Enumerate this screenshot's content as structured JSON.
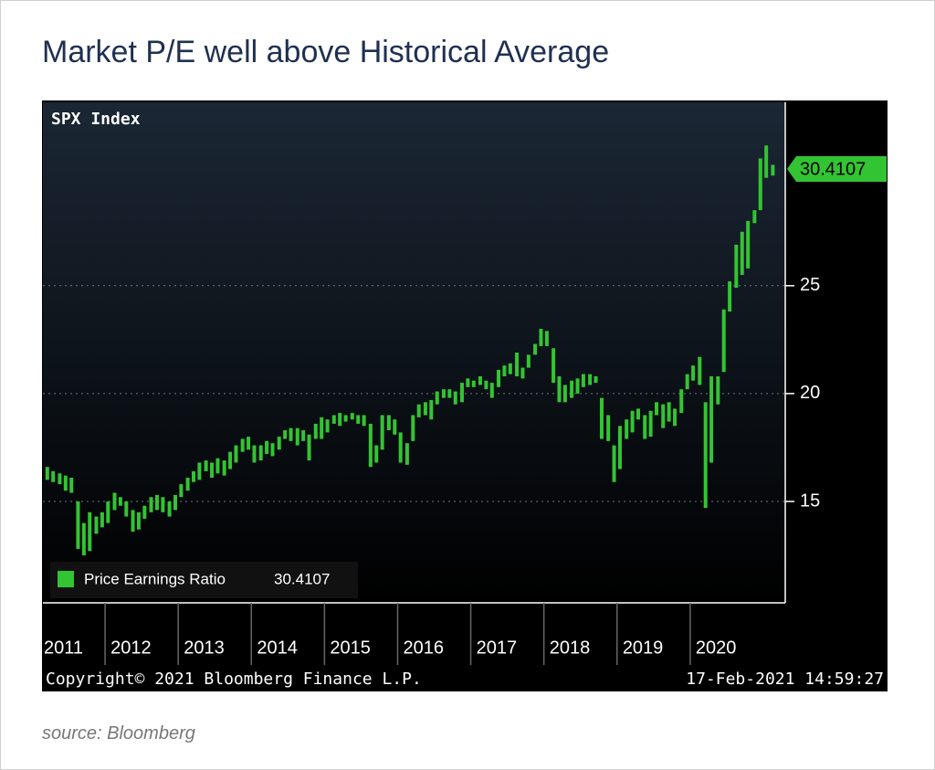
{
  "title": "Market P/E well above Historical Average",
  "source": "source: Bloomberg",
  "chart_data": {
    "type": "range-bar",
    "panel_title": "SPX Index",
    "copyright": "Copyright© 2021 Bloomberg Finance L.P.",
    "timestamp": "17-Feb-2021 14:59:27",
    "last_value": 30.4107,
    "x": [
      2011.21,
      2011.29,
      2011.38,
      2011.46,
      2011.54,
      2011.63,
      2011.71,
      2011.79,
      2011.88,
      2011.96,
      2012.04,
      2012.13,
      2012.21,
      2012.29,
      2012.38,
      2012.46,
      2012.54,
      2012.63,
      2012.71,
      2012.79,
      2012.88,
      2012.96,
      2013.04,
      2013.13,
      2013.21,
      2013.29,
      2013.38,
      2013.46,
      2013.54,
      2013.63,
      2013.71,
      2013.79,
      2013.88,
      2013.96,
      2014.04,
      2014.13,
      2014.21,
      2014.29,
      2014.38,
      2014.46,
      2014.54,
      2014.63,
      2014.71,
      2014.79,
      2014.88,
      2014.96,
      2015.04,
      2015.13,
      2015.21,
      2015.29,
      2015.38,
      2015.46,
      2015.54,
      2015.63,
      2015.71,
      2015.79,
      2015.88,
      2015.96,
      2016.04,
      2016.13,
      2016.21,
      2016.29,
      2016.38,
      2016.46,
      2016.54,
      2016.63,
      2016.71,
      2016.79,
      2016.88,
      2016.96,
      2017.04,
      2017.13,
      2017.21,
      2017.29,
      2017.38,
      2017.46,
      2017.54,
      2017.63,
      2017.71,
      2017.79,
      2017.88,
      2017.96,
      2018.04,
      2018.13,
      2018.21,
      2018.29,
      2018.38,
      2018.46,
      2018.54,
      2018.63,
      2018.71,
      2018.79,
      2018.88,
      2018.96,
      2019.04,
      2019.13,
      2019.21,
      2019.29,
      2019.38,
      2019.46,
      2019.54,
      2019.63,
      2019.71,
      2019.79,
      2019.88,
      2019.96,
      2020.04,
      2020.13,
      2020.21,
      2020.29,
      2020.38,
      2020.46,
      2020.54,
      2020.63,
      2020.71,
      2020.79,
      2020.88,
      2020.96,
      2021.04,
      2021.13
    ],
    "series": [
      {
        "name": "Price Earnings Ratio",
        "color": "#33c433",
        "low": [
          16.0,
          15.9,
          15.8,
          15.5,
          15.4,
          12.8,
          12.5,
          12.7,
          13.5,
          13.8,
          14.0,
          14.6,
          14.8,
          14.3,
          13.6,
          13.7,
          14.2,
          14.5,
          14.6,
          14.5,
          14.3,
          14.6,
          15.2,
          15.5,
          15.9,
          16.0,
          16.4,
          16.1,
          16.3,
          16.2,
          16.5,
          16.8,
          17.3,
          17.4,
          16.8,
          16.9,
          17.2,
          17.1,
          17.4,
          17.9,
          17.8,
          17.6,
          17.8,
          16.9,
          17.9,
          17.9,
          18.2,
          18.6,
          18.5,
          18.7,
          18.8,
          18.6,
          18.5,
          16.6,
          16.8,
          17.4,
          18.3,
          18.1,
          16.8,
          16.7,
          17.8,
          18.9,
          19.0,
          18.8,
          19.5,
          19.8,
          19.8,
          19.5,
          19.6,
          20.3,
          20.3,
          20.4,
          20.2,
          19.8,
          20.3,
          20.8,
          20.9,
          20.8,
          20.7,
          21.2,
          21.8,
          22.2,
          22.2,
          20.5,
          19.6,
          19.6,
          19.8,
          20.0,
          20.3,
          20.4,
          20.5,
          17.9,
          17.8,
          15.9,
          16.5,
          17.9,
          18.2,
          18.8,
          17.9,
          18.0,
          19.0,
          18.4,
          18.7,
          18.5,
          19.1,
          20.2,
          20.6,
          20.4,
          14.7,
          16.8,
          19.5,
          21.0,
          23.8,
          24.9,
          25.5,
          25.8,
          27.9,
          28.5,
          30.0,
          30.1
        ],
        "high": [
          16.6,
          16.4,
          16.3,
          16.2,
          16.1,
          15.0,
          14.0,
          14.5,
          14.3,
          14.5,
          15.0,
          15.4,
          15.2,
          15.0,
          14.6,
          14.5,
          14.8,
          15.2,
          15.3,
          15.2,
          15.0,
          15.3,
          15.8,
          16.1,
          16.4,
          16.8,
          16.9,
          16.8,
          17.0,
          16.9,
          17.3,
          17.6,
          17.9,
          18.0,
          17.6,
          17.6,
          17.8,
          17.7,
          18.0,
          18.3,
          18.4,
          18.4,
          18.3,
          18.1,
          18.6,
          18.9,
          18.8,
          19.0,
          19.1,
          19.0,
          19.1,
          19.0,
          19.0,
          18.6,
          17.6,
          19.0,
          19.0,
          18.8,
          18.2,
          17.7,
          19.0,
          19.5,
          19.6,
          19.7,
          20.1,
          20.2,
          20.2,
          20.1,
          20.5,
          20.7,
          20.6,
          20.8,
          20.6,
          20.5,
          21.1,
          21.3,
          21.4,
          21.9,
          21.2,
          21.8,
          22.3,
          23.0,
          22.9,
          22.1,
          20.8,
          20.4,
          20.6,
          20.7,
          20.9,
          20.9,
          20.8,
          19.8,
          19.0,
          17.6,
          18.5,
          18.8,
          19.2,
          19.3,
          19.0,
          19.2,
          19.6,
          19.5,
          19.6,
          19.3,
          20.2,
          20.9,
          21.3,
          21.7,
          19.6,
          20.8,
          20.8,
          23.9,
          25.2,
          26.9,
          27.5,
          28.0,
          28.5,
          30.9,
          31.5,
          30.6
        ]
      }
    ],
    "xlim": [
      2011.15,
      2021.3
    ],
    "ylim": [
      10.3,
      33.5
    ],
    "xticks": [
      2011,
      2012,
      2013,
      2014,
      2015,
      2016,
      2017,
      2018,
      2019,
      2020
    ],
    "yticks": [
      15,
      20,
      25
    ],
    "grid": true
  }
}
